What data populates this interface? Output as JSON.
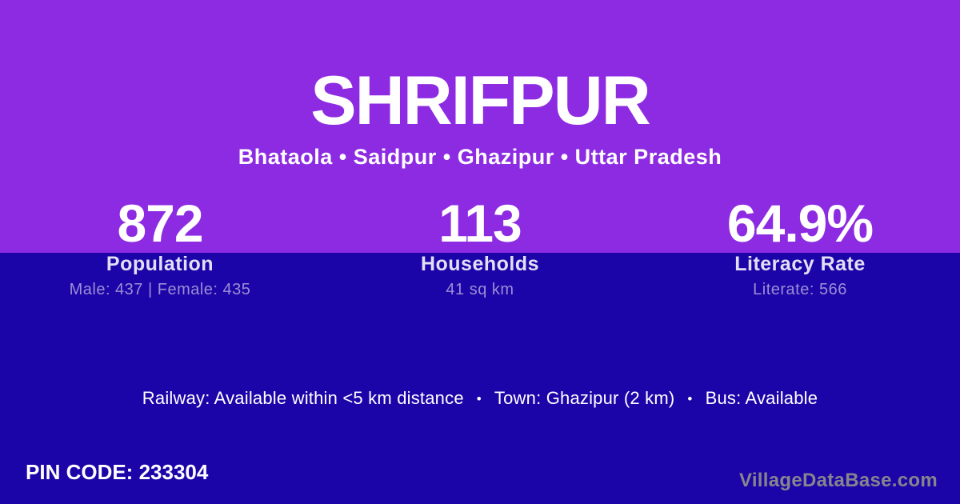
{
  "theme": {
    "bg_top": "#8D2BE2",
    "bg_bottom": "#1B05A8",
    "text_primary": "#FFFFFF",
    "text_label": "#E4DEF5",
    "text_muted": "#9A8FD5",
    "watermark": "#85858D"
  },
  "header": {
    "title": "SHRIFPUR",
    "subtitle": "Bhataola • Saidpur • Ghazipur • Uttar Pradesh"
  },
  "stats": [
    {
      "value": "872",
      "label": "Population",
      "detail": "Male: 437 | Female: 435"
    },
    {
      "value": "113",
      "label": "Households",
      "detail": "41 sq km"
    },
    {
      "value": "64.9%",
      "label": "Literacy Rate",
      "detail": "Literate: 566"
    }
  ],
  "amenities": {
    "railway": "Railway: Available within <5 km distance",
    "town": "Town: Ghazipur (2 km)",
    "bus": "Bus: Available",
    "separator": "•"
  },
  "footer": {
    "pin_code": "PIN CODE: 233304",
    "watermark": "VillageDataBase.com"
  }
}
